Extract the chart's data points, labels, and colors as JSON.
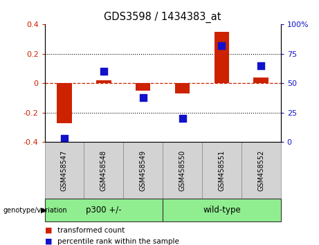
{
  "title": "GDS3598 / 1434383_at",
  "samples": [
    "GSM458547",
    "GSM458548",
    "GSM458549",
    "GSM458550",
    "GSM458551",
    "GSM458552"
  ],
  "red_values": [
    -0.27,
    0.02,
    -0.05,
    -0.07,
    0.35,
    0.04
  ],
  "blue_values": [
    3,
    60,
    38,
    20,
    82,
    65
  ],
  "group_label": "genotype/variation",
  "groups": [
    {
      "label": "p300 +/-",
      "start": 0,
      "end": 2
    },
    {
      "label": "wild-type",
      "start": 3,
      "end": 5
    }
  ],
  "left_ylim": [
    -0.4,
    0.4
  ],
  "right_ylim": [
    0,
    100
  ],
  "left_yticks": [
    -0.4,
    -0.2,
    0.0,
    0.2,
    0.4
  ],
  "right_yticks": [
    0,
    25,
    50,
    75,
    100
  ],
  "left_yticklabels": [
    "-0.4",
    "-0.2",
    "0",
    "0.2",
    "0.4"
  ],
  "right_yticklabels": [
    "0",
    "25",
    "50",
    "75",
    "100%"
  ],
  "red_color": "#CC2200",
  "blue_color": "#1111CC",
  "bar_width": 0.38,
  "dot_size": 55,
  "hline_color": "#CC2200",
  "grid_color": "#000000",
  "bg_color": "#FFFFFF",
  "tick_bg": "#D3D3D3",
  "group_color": "#90EE90",
  "legend_red_label": "transformed count",
  "legend_blue_label": "percentile rank within the sample"
}
